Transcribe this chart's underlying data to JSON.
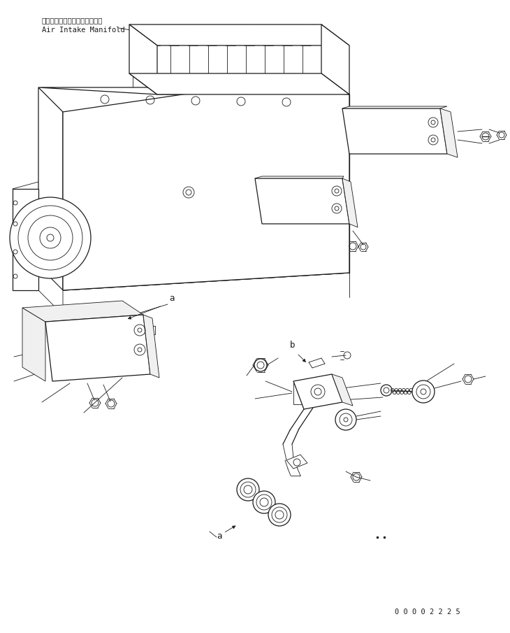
{
  "bg_color": "#ffffff",
  "line_color": "#1a1a1a",
  "text_color": "#1a1a1a",
  "label_japanese": "エアーインテークマニホールド",
  "label_english": "Air Intake Manifold",
  "label_a1": "a",
  "label_b": "b",
  "label_a2": "a",
  "document_number": "0 0 0 0 2 2 2 5",
  "fig_width": 7.3,
  "fig_height": 9.05,
  "dpi": 100
}
